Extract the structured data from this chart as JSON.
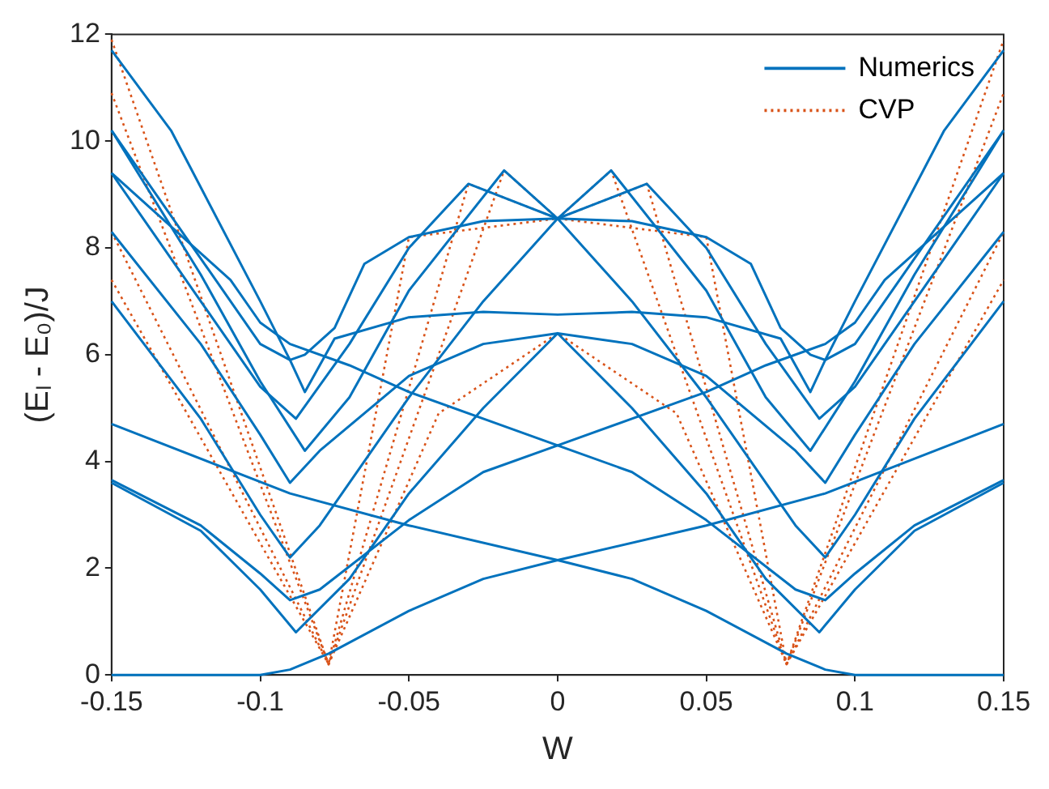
{
  "chart_data": {
    "type": "line",
    "xlabel": "W",
    "ylabel": "(Eₗ - E₀)/J",
    "xlim": [
      -0.15,
      0.15
    ],
    "xticks": [
      -0.15,
      -0.1,
      -0.05,
      0,
      0.05,
      0.1,
      0.15
    ],
    "ylim": [
      0,
      12
    ],
    "yticks": [
      0,
      2,
      4,
      6,
      8,
      10,
      12
    ],
    "grid": false,
    "legend": "top right",
    "marker": "none",
    "series": [
      {
        "name": "Numerics",
        "color": "#0072bd",
        "line_style": "solid",
        "x": [
          -0.15,
          -0.1,
          -0.09,
          -0.077,
          -0.05,
          -0.025,
          0,
          0.025,
          0.05,
          0.077,
          0.09,
          0.1,
          0.15
        ],
        "values": [
          0,
          0,
          0.1,
          0.4,
          1.2,
          1.8,
          2.15,
          1.8,
          1.2,
          0.4,
          0.1,
          0,
          0
        ]
      },
      {
        "color": "#0072bd",
        "line_style": "solid",
        "x": [
          -0.15,
          -0.12,
          -0.1,
          -0.088,
          -0.07,
          -0.05,
          -0.025,
          0,
          0.025,
          0.05,
          0.07,
          0.088,
          0.1,
          0.12,
          0.15
        ],
        "values": [
          3.6,
          2.7,
          1.6,
          0.8,
          1.8,
          3.4,
          5.0,
          6.4,
          5.0,
          3.4,
          1.8,
          0.8,
          1.6,
          2.7,
          3.6
        ]
      },
      {
        "color": "#0072bd",
        "line_style": "solid",
        "x": [
          -0.15,
          -0.09,
          -0.05,
          0,
          0.05,
          0.09,
          0.15
        ],
        "values": [
          4.7,
          3.4,
          2.8,
          2.15,
          2.8,
          3.4,
          4.7
        ]
      },
      {
        "color": "#0072bd",
        "line_style": "solid",
        "x": [
          -0.15,
          -0.12,
          -0.1,
          -0.09,
          -0.08,
          -0.05,
          -0.025,
          0,
          0.025,
          0.05,
          0.08,
          0.09,
          0.1,
          0.12,
          0.15
        ],
        "values": [
          3.65,
          2.8,
          1.9,
          1.4,
          1.6,
          2.9,
          3.8,
          4.3,
          3.8,
          2.9,
          1.6,
          1.4,
          1.9,
          2.8,
          3.65
        ]
      },
      {
        "color": "#0072bd",
        "line_style": "solid",
        "x": [
          -0.15,
          -0.12,
          -0.1,
          -0.09,
          -0.08,
          -0.05,
          -0.025,
          0,
          0.025,
          0.05,
          0.08,
          0.09,
          0.1,
          0.12,
          0.15
        ],
        "values": [
          7.0,
          4.8,
          3.0,
          2.2,
          2.8,
          5.2,
          7.0,
          8.55,
          7.0,
          5.2,
          2.8,
          2.2,
          3.0,
          4.8,
          7.0
        ]
      },
      {
        "color": "#0072bd",
        "line_style": "solid",
        "x": [
          -0.15,
          -0.12,
          -0.1,
          -0.09,
          -0.08,
          -0.05,
          -0.025,
          0,
          0.025,
          0.05,
          0.08,
          0.09,
          0.1,
          0.12,
          0.15
        ],
        "values": [
          8.3,
          6.2,
          4.5,
          3.6,
          4.2,
          5.6,
          6.2,
          6.4,
          6.2,
          5.6,
          4.2,
          3.6,
          4.5,
          6.2,
          8.3
        ]
      },
      {
        "color": "#0072bd",
        "line_style": "solid",
        "x": [
          -0.15,
          -0.11,
          -0.1,
          -0.09,
          -0.07,
          -0.05,
          -0.025,
          0,
          0.025,
          0.05,
          0.07,
          0.09,
          0.1,
          0.11,
          0.15
        ],
        "values": [
          9.4,
          7.4,
          6.6,
          6.2,
          5.8,
          5.3,
          4.8,
          4.3,
          4.8,
          5.3,
          5.8,
          6.2,
          6.6,
          7.4,
          9.4
        ]
      },
      {
        "color": "#0072bd",
        "line_style": "solid",
        "x": [
          -0.15,
          -0.12,
          -0.1,
          -0.085,
          -0.07,
          -0.05,
          -0.018,
          0,
          0.018,
          0.05,
          0.07,
          0.085,
          0.1,
          0.12,
          0.15
        ],
        "values": [
          10.2,
          7.5,
          5.5,
          4.2,
          5.2,
          7.2,
          9.45,
          8.55,
          9.45,
          7.2,
          5.2,
          4.2,
          5.5,
          7.5,
          10.2
        ]
      },
      {
        "color": "#0072bd",
        "line_style": "solid",
        "x": [
          -0.15,
          -0.13,
          -0.1,
          -0.09,
          -0.085,
          -0.075,
          -0.05,
          -0.025,
          0,
          0.025,
          0.05,
          0.075,
          0.085,
          0.09,
          0.1,
          0.13,
          0.15
        ],
        "values": [
          11.7,
          10.2,
          7.0,
          5.9,
          5.3,
          6.3,
          6.7,
          6.8,
          6.75,
          6.8,
          6.7,
          6.3,
          5.3,
          5.9,
          7.0,
          10.2,
          11.7
        ]
      },
      {
        "color": "#0072bd",
        "line_style": "solid",
        "x": [
          -0.15,
          -0.1,
          -0.09,
          -0.085,
          -0.075,
          -0.065,
          -0.05,
          -0.025,
          0,
          0.025,
          0.05,
          0.065,
          0.075,
          0.085,
          0.09,
          0.1,
          0.15
        ],
        "values": [
          10.2,
          6.2,
          5.9,
          6.0,
          6.5,
          7.7,
          8.2,
          8.5,
          8.55,
          8.5,
          8.2,
          7.7,
          6.5,
          6.0,
          5.9,
          6.2,
          10.2
        ]
      },
      {
        "color": "#0072bd",
        "line_style": "solid",
        "x": [
          -0.15,
          -0.1,
          -0.088,
          -0.07,
          -0.05,
          -0.03,
          0,
          0.03,
          0.05,
          0.07,
          0.088,
          0.1,
          0.15
        ],
        "values": [
          9.4,
          5.4,
          4.8,
          6.2,
          8.0,
          9.2,
          8.55,
          9.2,
          8.0,
          6.2,
          4.8,
          5.4,
          9.4
        ]
      },
      {
        "name": "CVP",
        "color": "#d95319",
        "line_style": "dotted",
        "x": [
          -0.15,
          -0.077,
          -0.018,
          0,
          0.018,
          0.077,
          0.15
        ],
        "values": [
          11.9,
          0.2,
          9.45,
          8.55,
          9.45,
          0.2,
          11.9
        ]
      },
      {
        "color": "#d95319",
        "line_style": "dotted",
        "x": [
          -0.15,
          -0.077,
          -0.03,
          0,
          0.03,
          0.077,
          0.15
        ],
        "values": [
          10.9,
          0.2,
          9.2,
          8.55,
          9.2,
          0.2,
          10.9
        ]
      },
      {
        "color": "#d95319",
        "line_style": "dotted",
        "x": [
          -0.15,
          -0.077,
          -0.05,
          0,
          0.05,
          0.077,
          0.15
        ],
        "values": [
          8.3,
          0.2,
          8.2,
          8.55,
          8.2,
          0.2,
          8.3
        ]
      },
      {
        "color": "#d95319",
        "line_style": "dotted",
        "x": [
          -0.15,
          -0.077,
          -0.04,
          0,
          0.04,
          0.077,
          0.15
        ],
        "values": [
          7.4,
          0.2,
          4.9,
          6.4,
          4.9,
          0.2,
          7.4
        ]
      }
    ]
  }
}
